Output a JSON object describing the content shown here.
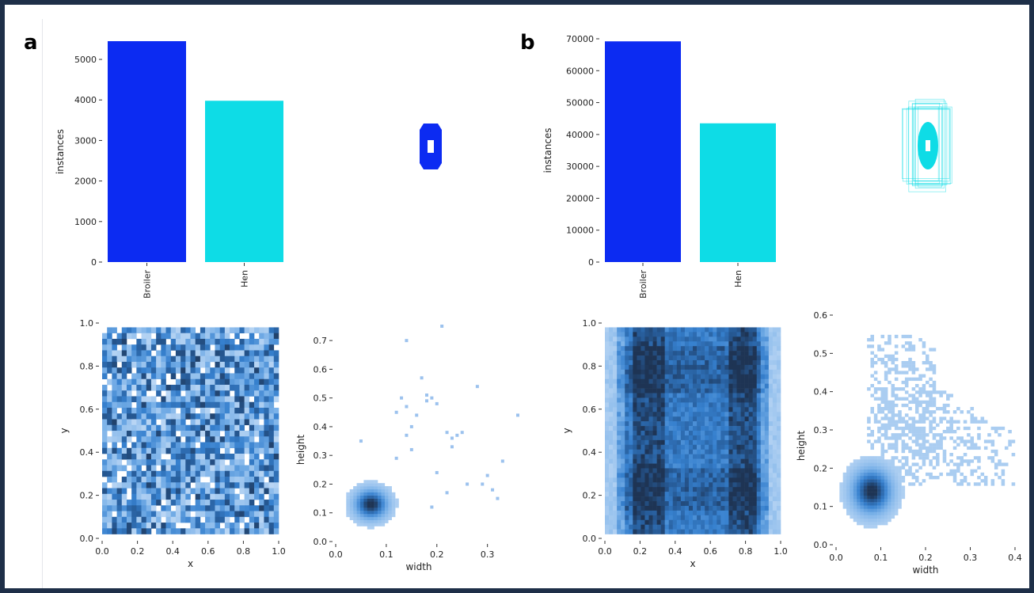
{
  "panels": [
    {
      "label": "a",
      "bar_chart": {
        "type": "bar",
        "categories": [
          "Broiler",
          "Hen"
        ],
        "values": [
          5450,
          3980
        ],
        "colors": [
          "#0c2bf2",
          "#0edce6"
        ],
        "ylabel": "instances",
        "ylim": [
          0,
          5450
        ],
        "yticks": [
          0,
          1000,
          2000,
          3000,
          4000,
          5000
        ]
      },
      "box_preview": {
        "color": "#0c2bf2",
        "style": "single-box"
      },
      "xy_hist": {
        "type": "heatmap",
        "xlabel": "x",
        "ylabel": "y",
        "xlim": [
          0,
          1
        ],
        "ylim": [
          0,
          1
        ],
        "xticks": [
          "0.0",
          "0.2",
          "0.4",
          "0.6",
          "0.8",
          "1.0"
        ],
        "yticks": [
          "0.0",
          "0.2",
          "0.4",
          "0.6",
          "0.8",
          "1.0"
        ],
        "data_range": {
          "x": [
            0.0,
            1.0
          ],
          "y": [
            0.02,
            0.98
          ]
        },
        "pattern": "uniform",
        "bins": 36
      },
      "wh_hist": {
        "type": "heatmap",
        "xlabel": "width",
        "ylabel": "height",
        "xlim": [
          0,
          0.36
        ],
        "ylim": [
          0,
          0.75
        ],
        "xticks": [
          "0.0",
          "0.1",
          "0.2",
          "0.3"
        ],
        "yticks": [
          "0.0",
          "0.1",
          "0.2",
          "0.3",
          "0.4",
          "0.5",
          "0.6",
          "0.7"
        ],
        "peak": {
          "x": 0.07,
          "y": 0.13
        },
        "spread": {
          "x": 0.022,
          "y": 0.035
        },
        "scatter": [
          [
            0.05,
            0.35
          ],
          [
            0.12,
            0.45
          ],
          [
            0.13,
            0.5
          ],
          [
            0.14,
            0.47
          ],
          [
            0.15,
            0.4
          ],
          [
            0.14,
            0.37
          ],
          [
            0.15,
            0.32
          ],
          [
            0.17,
            0.57
          ],
          [
            0.19,
            0.5
          ],
          [
            0.18,
            0.49
          ],
          [
            0.2,
            0.48
          ],
          [
            0.22,
            0.38
          ],
          [
            0.23,
            0.36
          ],
          [
            0.24,
            0.37
          ],
          [
            0.23,
            0.33
          ],
          [
            0.25,
            0.38
          ],
          [
            0.26,
            0.2
          ],
          [
            0.28,
            0.54
          ],
          [
            0.29,
            0.2
          ],
          [
            0.3,
            0.23
          ],
          [
            0.31,
            0.18
          ],
          [
            0.32,
            0.15
          ],
          [
            0.33,
            0.28
          ],
          [
            0.36,
            0.44
          ],
          [
            0.21,
            0.75
          ],
          [
            0.14,
            0.7
          ],
          [
            0.2,
            0.24
          ],
          [
            0.16,
            0.44
          ],
          [
            0.18,
            0.51
          ],
          [
            0.22,
            0.17
          ],
          [
            0.19,
            0.12
          ],
          [
            0.12,
            0.29
          ]
        ]
      }
    },
    {
      "label": "b",
      "bar_chart": {
        "type": "bar",
        "categories": [
          "Broiler",
          "Hen"
        ],
        "values": [
          69200,
          43500
        ],
        "colors": [
          "#0c2bf2",
          "#0edce6"
        ],
        "ylabel": "instances",
        "ylim": [
          0,
          70000
        ],
        "yticks": [
          0,
          10000,
          20000,
          30000,
          40000,
          50000,
          60000,
          70000
        ]
      },
      "box_preview": {
        "color": "#0edce6",
        "style": "many-boxes"
      },
      "xy_hist": {
        "type": "heatmap",
        "xlabel": "x",
        "ylabel": "y",
        "xlim": [
          0,
          1
        ],
        "ylim": [
          0,
          1
        ],
        "xticks": [
          "0.0",
          "0.2",
          "0.4",
          "0.6",
          "0.8",
          "1.0"
        ],
        "yticks": [
          "0.0",
          "0.2",
          "0.4",
          "0.6",
          "0.8",
          "1.0"
        ],
        "data_range": {
          "x": [
            0.0,
            1.0
          ],
          "y": [
            0.02,
            0.98
          ]
        },
        "pattern": "dense-center",
        "bins": 44
      },
      "wh_hist": {
        "type": "heatmap",
        "xlabel": "width",
        "ylabel": "height",
        "xlim": [
          0,
          0.4
        ],
        "ylim": [
          0,
          0.6
        ],
        "xticks": [
          "0.0",
          "0.1",
          "0.2",
          "0.3",
          "0.4"
        ],
        "yticks": [
          "0.0",
          "0.1",
          "0.2",
          "0.3",
          "0.4",
          "0.5",
          "0.6"
        ],
        "peak": {
          "x": 0.08,
          "y": 0.14
        },
        "spread": {
          "x": 0.03,
          "y": 0.04
        },
        "plume": {
          "from": [
            0.1,
            0.2
          ],
          "to": [
            0.4,
            0.22
          ]
        },
        "scatter": []
      }
    }
  ],
  "colors": {
    "background": "#1e2f48",
    "tick_text": "#222222",
    "hist_base": "#9cc2ee",
    "hist_mid": "#3d8fdc",
    "hist_dark": "#1f3f63"
  }
}
